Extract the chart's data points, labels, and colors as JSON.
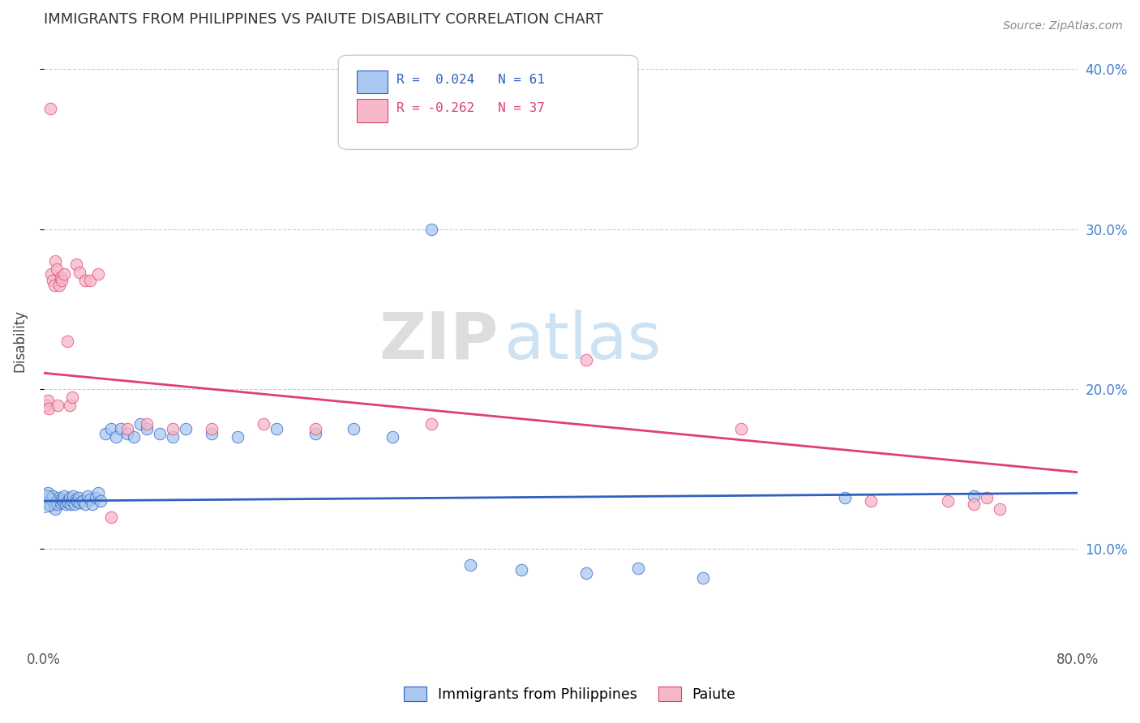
{
  "title": "IMMIGRANTS FROM PHILIPPINES VS PAIUTE DISABILITY CORRELATION CHART",
  "source": "Source: ZipAtlas.com",
  "ylabel": "Disability",
  "xlim": [
    0.0,
    0.8
  ],
  "ylim": [
    0.04,
    0.42
  ],
  "yticks": [
    0.1,
    0.2,
    0.3,
    0.4
  ],
  "ytick_labels": [
    "10.0%",
    "20.0%",
    "30.0%",
    "40.0%"
  ],
  "xticks": [
    0.0,
    0.1,
    0.2,
    0.3,
    0.4,
    0.5,
    0.6,
    0.7,
    0.8
  ],
  "xtick_labels": [
    "0.0%",
    "",
    "",
    "",
    "",
    "",
    "",
    "",
    "80.0%"
  ],
  "blue_color": "#a8c8f0",
  "pink_color": "#f5b8c8",
  "blue_line_color": "#3060c0",
  "pink_line_color": "#e04070",
  "legend_label_blue": "Immigrants from Philippines",
  "legend_label_pink": "Paiute",
  "watermark_zip": "ZIP",
  "watermark_atlas": "atlas",
  "background_color": "#ffffff",
  "grid_color": "#cccccc",
  "title_color": "#333333",
  "tick_color_right": "#4080d0",
  "blue_x": [
    0.001,
    0.002,
    0.003,
    0.004,
    0.005,
    0.006,
    0.007,
    0.008,
    0.009,
    0.01,
    0.011,
    0.012,
    0.013,
    0.014,
    0.015,
    0.016,
    0.017,
    0.018,
    0.019,
    0.02,
    0.021,
    0.022,
    0.023,
    0.024,
    0.025,
    0.026,
    0.027,
    0.028,
    0.03,
    0.032,
    0.034,
    0.036,
    0.038,
    0.04,
    0.042,
    0.044,
    0.048,
    0.052,
    0.056,
    0.06,
    0.065,
    0.07,
    0.075,
    0.08,
    0.09,
    0.1,
    0.11,
    0.13,
    0.15,
    0.18,
    0.21,
    0.24,
    0.27,
    0.3,
    0.33,
    0.37,
    0.42,
    0.46,
    0.51,
    0.62,
    0.72
  ],
  "blue_y": [
    0.13,
    0.132,
    0.135,
    0.128,
    0.127,
    0.131,
    0.133,
    0.128,
    0.125,
    0.13,
    0.128,
    0.132,
    0.129,
    0.131,
    0.13,
    0.133,
    0.128,
    0.13,
    0.129,
    0.132,
    0.128,
    0.13,
    0.133,
    0.128,
    0.131,
    0.13,
    0.132,
    0.129,
    0.13,
    0.128,
    0.133,
    0.131,
    0.128,
    0.132,
    0.135,
    0.13,
    0.172,
    0.175,
    0.17,
    0.175,
    0.172,
    0.17,
    0.178,
    0.175,
    0.172,
    0.17,
    0.175,
    0.172,
    0.17,
    0.175,
    0.172,
    0.175,
    0.17,
    0.3,
    0.09,
    0.087,
    0.085,
    0.088,
    0.082,
    0.132,
    0.133
  ],
  "blue_x_large": [
    0.001
  ],
  "blue_y_large": [
    0.13
  ],
  "pink_x": [
    0.002,
    0.003,
    0.004,
    0.005,
    0.006,
    0.007,
    0.008,
    0.009,
    0.01,
    0.011,
    0.012,
    0.013,
    0.014,
    0.016,
    0.018,
    0.02,
    0.022,
    0.025,
    0.028,
    0.032,
    0.036,
    0.042,
    0.052,
    0.065,
    0.08,
    0.1,
    0.13,
    0.17,
    0.21,
    0.3,
    0.42,
    0.54,
    0.64,
    0.7,
    0.72,
    0.73,
    0.74
  ],
  "pink_y": [
    0.19,
    0.193,
    0.188,
    0.375,
    0.272,
    0.268,
    0.265,
    0.28,
    0.275,
    0.19,
    0.265,
    0.27,
    0.268,
    0.272,
    0.23,
    0.19,
    0.195,
    0.278,
    0.273,
    0.268,
    0.268,
    0.272,
    0.12,
    0.175,
    0.178,
    0.175,
    0.175,
    0.178,
    0.175,
    0.178,
    0.218,
    0.175,
    0.13,
    0.13,
    0.128,
    0.132,
    0.125
  ]
}
